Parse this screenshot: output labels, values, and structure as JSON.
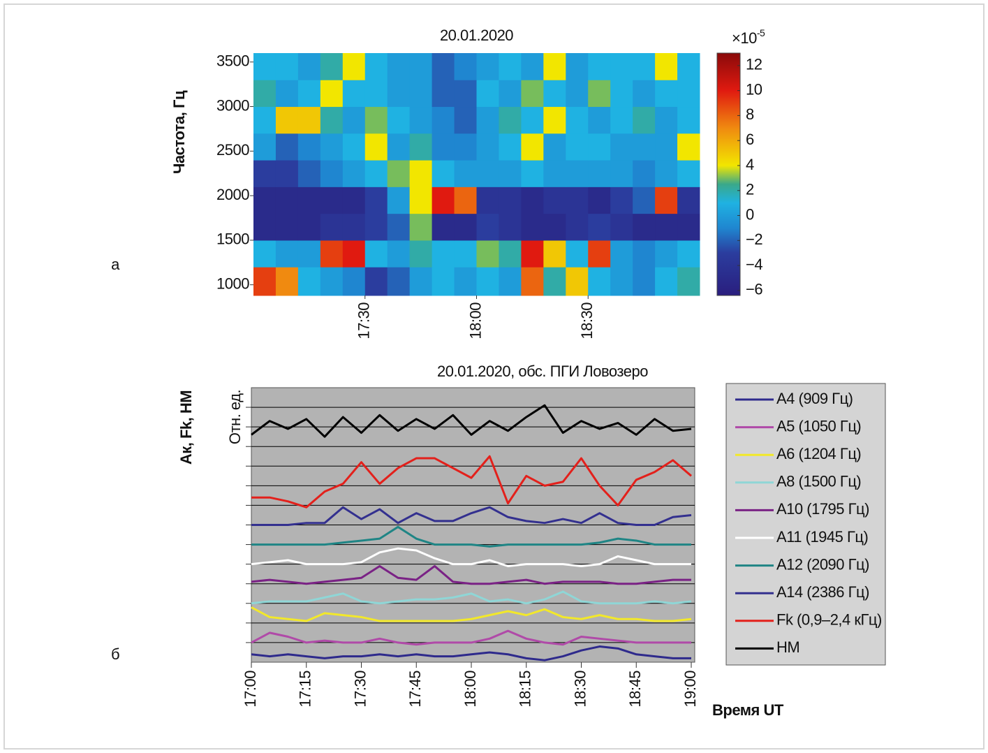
{
  "chart_data": [
    {
      "type": "heatmap",
      "title": "20.01.2020",
      "ylabel": "Частота, Гц",
      "panel_label": "а",
      "xlim": [
        1020,
        1140
      ],
      "ylim": [
        880,
        3600
      ],
      "xticks": [
        {
          "value": 1050,
          "label": "17:30"
        },
        {
          "value": 1080,
          "label": "18:00"
        },
        {
          "value": 1110,
          "label": "18:30"
        }
      ],
      "yticks": [
        1000,
        1500,
        2000,
        2500,
        3000,
        3500
      ],
      "x_edges": [
        1020,
        1026,
        1032,
        1038,
        1044,
        1050,
        1056,
        1062,
        1068,
        1074,
        1080,
        1086,
        1092,
        1098,
        1104,
        1110,
        1116,
        1122,
        1128,
        1134,
        1140
      ],
      "y_edges": [
        880,
        1200,
        1500,
        1800,
        2100,
        2400,
        2700,
        3000,
        3300,
        3600
      ],
      "values": [
        [
          9,
          7,
          1,
          0,
          -1,
          -3,
          -2,
          0,
          1,
          0,
          1,
          0,
          8,
          2,
          5,
          1,
          0,
          -1,
          1,
          2
        ],
        [
          1,
          0,
          0,
          9,
          10,
          1,
          0,
          2,
          1,
          1,
          3,
          2,
          10,
          5,
          1,
          9,
          0,
          -1,
          0,
          1
        ],
        [
          -5,
          -5,
          -5,
          -4,
          -4,
          -3,
          -2,
          3,
          -5,
          -5,
          -3,
          -4,
          -5,
          -5,
          -4,
          -3,
          -4,
          -5,
          -5,
          -5
        ],
        [
          -5,
          -5,
          -5,
          -5,
          -5,
          -3,
          0,
          4,
          10,
          8,
          -4,
          -4,
          -5,
          -4,
          -4,
          -5,
          -3,
          -2,
          9,
          -4
        ],
        [
          -3,
          -3,
          -2,
          -1,
          0,
          1,
          3,
          4,
          1,
          0,
          0,
          0,
          1,
          0,
          0,
          0,
          0,
          -1,
          0,
          1
        ],
        [
          0,
          -2,
          -1,
          0,
          1,
          4,
          0,
          2,
          -1,
          -1,
          0,
          1,
          4,
          0,
          1,
          1,
          0,
          0,
          0,
          4
        ],
        [
          1,
          5,
          5,
          2,
          0,
          3,
          1,
          0,
          -1,
          -2,
          0,
          2,
          1,
          4,
          1,
          0,
          1,
          2,
          0,
          1
        ],
        [
          2,
          0,
          1,
          4,
          1,
          1,
          0,
          0,
          -2,
          -2,
          1,
          0,
          3,
          1,
          0,
          3,
          1,
          0,
          1,
          1
        ],
        [
          1,
          1,
          0,
          2,
          4,
          1,
          0,
          0,
          -2,
          -1,
          0,
          1,
          0,
          4,
          0,
          1,
          1,
          1,
          4,
          1
        ]
      ],
      "clim": [
        -6.4,
        13
      ],
      "colorbar_ticks": [
        12,
        10,
        8,
        6,
        4,
        2,
        0,
        {
          "value": -2,
          "label": "−2"
        },
        {
          "value": -4,
          "label": "−4"
        },
        {
          "value": -6,
          "label": "−6"
        }
      ],
      "colorbar_unit": "×10",
      "colorbar_exponent": "-5",
      "colorscale": [
        [
          -6.4,
          "#2a1e7e"
        ],
        [
          -3,
          "#2b3d9e"
        ],
        [
          -1,
          "#1f86d0"
        ],
        [
          1,
          "#1fb2e2"
        ],
        [
          2.5,
          "#3aa88a"
        ],
        [
          4,
          "#f2e600"
        ],
        [
          7,
          "#f08a10"
        ],
        [
          10,
          "#e01a10"
        ],
        [
          13,
          "#8a0a0a"
        ]
      ]
    },
    {
      "type": "line",
      "title": "20.01.2020, обс. ПГИ Ловозеро",
      "ylabel": "Ак, Fk, HM",
      "inner_ylabel": "Отн. ед.",
      "xlabel": "Время UT",
      "panel_label": "б",
      "xlim": [
        1020,
        1140
      ],
      "ylim": [
        0,
        14
      ],
      "xticks": [
        {
          "value": 1020,
          "label": "17:00"
        },
        {
          "value": 1035,
          "label": "17:15"
        },
        {
          "value": 1050,
          "label": "17:30"
        },
        {
          "value": 1065,
          "label": "17:45"
        },
        {
          "value": 1080,
          "label": "18:00"
        },
        {
          "value": 1095,
          "label": "18:15"
        },
        {
          "value": 1110,
          "label": "18:30"
        },
        {
          "value": 1125,
          "label": "18:45"
        },
        {
          "value": 1140,
          "label": "19:00"
        }
      ],
      "yticks": [
        1,
        2,
        3,
        4,
        5,
        6,
        7,
        8,
        9,
        10,
        11,
        12,
        13
      ],
      "grid": true,
      "x": [
        1020,
        1025,
        1030,
        1035,
        1040,
        1045,
        1050,
        1055,
        1060,
        1065,
        1070,
        1075,
        1080,
        1085,
        1090,
        1095,
        1100,
        1105,
        1110,
        1115,
        1120,
        1125,
        1130,
        1135,
        1140
      ],
      "series": [
        {
          "name": "A4 (909 Гц)",
          "color": "#2e2a8c",
          "values": [
            0.4,
            0.3,
            0.4,
            0.3,
            0.2,
            0.3,
            0.3,
            0.4,
            0.3,
            0.4,
            0.3,
            0.3,
            0.4,
            0.5,
            0.4,
            0.2,
            0.1,
            0.3,
            0.6,
            0.8,
            0.7,
            0.4,
            0.3,
            0.2,
            0.2
          ]
        },
        {
          "name": "A5 (1050 Гц)",
          "color": "#b04aa8",
          "values": [
            1.0,
            1.5,
            1.3,
            1.0,
            1.1,
            1.0,
            1.0,
            1.2,
            1.0,
            0.9,
            1.0,
            1.0,
            1.0,
            1.2,
            1.6,
            1.2,
            1.0,
            0.9,
            1.3,
            1.2,
            1.1,
            1.0,
            1.0,
            1.0,
            1.0
          ]
        },
        {
          "name": "A6 (1204 Гц)",
          "color": "#f2e82a",
          "values": [
            2.8,
            2.3,
            2.2,
            2.1,
            2.5,
            2.4,
            2.3,
            2.1,
            2.1,
            2.1,
            2.1,
            2.1,
            2.2,
            2.4,
            2.6,
            2.4,
            2.7,
            2.3,
            2.2,
            2.4,
            2.2,
            2.2,
            2.1,
            2.1,
            2.2
          ]
        },
        {
          "name": "A8 (1500 Гц)",
          "color": "#8fd6d6",
          "values": [
            3.0,
            3.1,
            3.1,
            3.1,
            3.3,
            3.5,
            3.1,
            3.0,
            3.1,
            3.2,
            3.2,
            3.3,
            3.5,
            3.1,
            3.2,
            3.0,
            3.2,
            3.6,
            3.1,
            3.0,
            3.0,
            3.0,
            3.1,
            3.0,
            3.1
          ]
        },
        {
          "name": "A10 (1795 Гц)",
          "color": "#7a2285",
          "values": [
            4.1,
            4.2,
            4.1,
            4.0,
            4.1,
            4.2,
            4.3,
            4.9,
            4.3,
            4.2,
            4.9,
            4.1,
            4.0,
            4.0,
            4.1,
            4.2,
            4.0,
            4.1,
            4.1,
            4.1,
            4.0,
            4.0,
            4.1,
            4.2,
            4.2
          ]
        },
        {
          "name": "A11 (1945 Гц)",
          "color": "#ffffff",
          "values": [
            5.0,
            5.1,
            5.2,
            5.0,
            5.0,
            5.0,
            5.1,
            5.6,
            5.8,
            5.7,
            5.3,
            5.0,
            5.0,
            5.2,
            4.9,
            5.0,
            5.0,
            5.0,
            4.9,
            5.0,
            5.4,
            5.2,
            5.0,
            5.0,
            5.0
          ]
        },
        {
          "name": "A12 (2090 Гц)",
          "color": "#1f8585",
          "values": [
            6.0,
            6.0,
            6.0,
            6.0,
            6.0,
            6.1,
            6.2,
            6.3,
            6.9,
            6.3,
            6.0,
            6.0,
            6.0,
            5.9,
            6.0,
            6.0,
            6.0,
            6.0,
            6.0,
            6.1,
            6.3,
            6.2,
            6.0,
            6.0,
            6.0
          ]
        },
        {
          "name": "A14 (2386 Гц)",
          "color": "#33308f",
          "values": [
            7.0,
            7.0,
            7.0,
            7.1,
            7.1,
            7.9,
            7.3,
            7.8,
            7.1,
            7.6,
            7.2,
            7.2,
            7.6,
            7.9,
            7.4,
            7.2,
            7.1,
            7.3,
            7.1,
            7.6,
            7.1,
            7.0,
            7.0,
            7.4,
            7.5
          ]
        },
        {
          "name": "Fk (0,9–2,4 кГц)",
          "color": "#e3201b",
          "values": [
            8.4,
            8.4,
            8.2,
            7.9,
            8.7,
            9.1,
            10.2,
            9.1,
            9.9,
            10.4,
            10.4,
            9.9,
            9.4,
            10.5,
            8.1,
            9.5,
            9.0,
            9.2,
            10.4,
            9.0,
            8.0,
            9.3,
            9.7,
            10.3,
            9.5
          ]
        },
        {
          "name": "HM",
          "color": "#000000",
          "values": [
            11.6,
            12.3,
            11.9,
            12.4,
            11.5,
            12.5,
            11.7,
            12.6,
            11.8,
            12.4,
            11.9,
            12.6,
            11.6,
            12.3,
            11.8,
            12.5,
            13.1,
            11.7,
            12.3,
            11.9,
            12.2,
            11.6,
            12.4,
            11.8,
            11.9
          ]
        }
      ]
    }
  ]
}
